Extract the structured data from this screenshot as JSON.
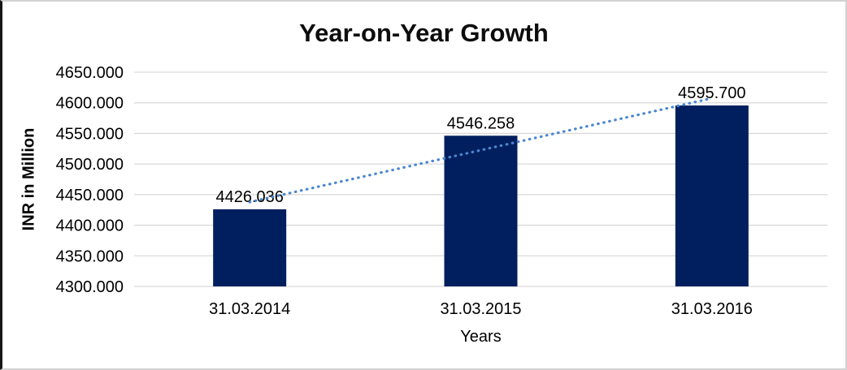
{
  "chart_data": {
    "type": "bar",
    "title": "Year-on-Year Growth",
    "xlabel": "Years",
    "ylabel": "INR in Million",
    "categories": [
      "31.03.2014",
      "31.03.2015",
      "31.03.2016"
    ],
    "values": [
      4426.036,
      4546.258,
      4595.7
    ],
    "data_labels": [
      "4426.036",
      "4546.258",
      "4595.700"
    ],
    "ylim": [
      4300,
      4650
    ],
    "ytick_step": 50,
    "yticks": [
      "4300.000",
      "4350.000",
      "4400.000",
      "4450.000",
      "4500.000",
      "4550.000",
      "4600.000",
      "4650.000"
    ],
    "grid": true,
    "legend": false,
    "trendline": true,
    "colors": {
      "bar": "#011f5e",
      "trendline": "#4a86cf",
      "gridline": "#d9d9d9",
      "text": "#000000",
      "title": "#0d0d0d"
    }
  }
}
